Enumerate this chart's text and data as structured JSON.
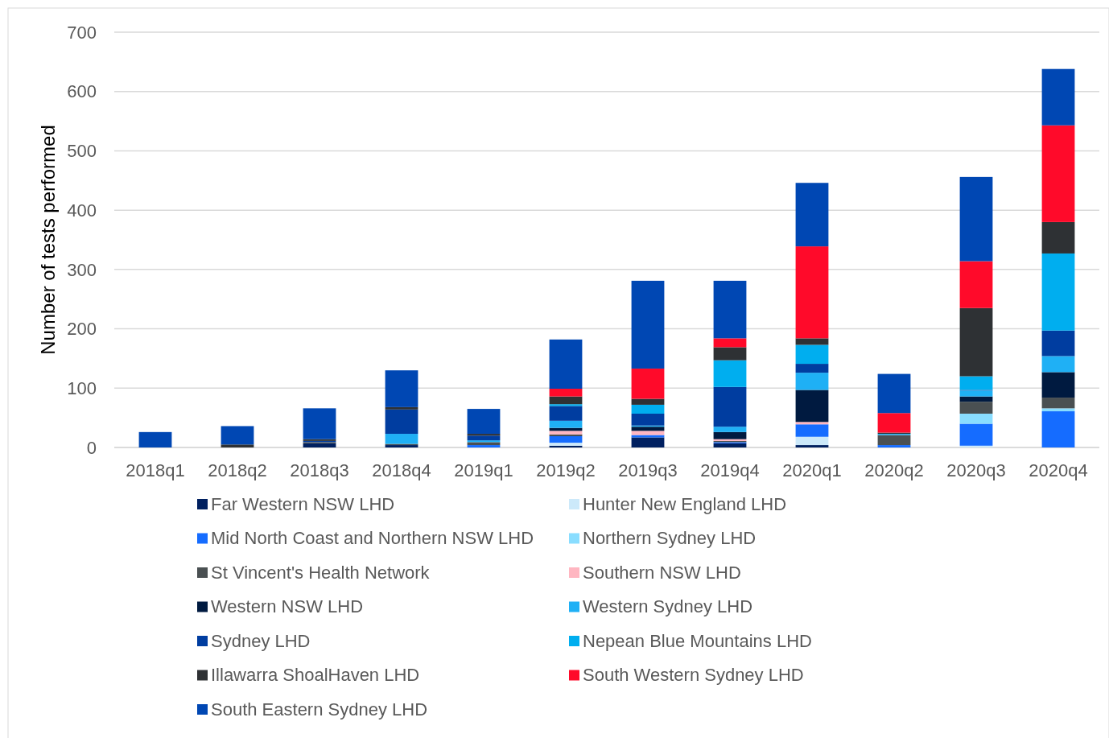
{
  "chart_data": {
    "type": "bar",
    "stacked": true,
    "ylabel": "Number of tests performed",
    "categories": [
      "2018q1",
      "2018q2",
      "2018q3",
      "2018q4",
      "2019q1",
      "2019q2",
      "2019q3",
      "2019q4",
      "2020q1",
      "2020q2",
      "2020q3",
      "2020q4"
    ],
    "ylim": [
      0,
      700
    ],
    "yticks": [
      0,
      100,
      200,
      300,
      400,
      500,
      600,
      700
    ],
    "grid": "y",
    "legend": "bottom",
    "series": [
      {
        "name": "Far Western NSW LHD",
        "color": "#002060",
        "values": [
          0,
          0,
          7,
          4,
          0,
          3,
          17,
          7,
          4,
          0,
          0,
          0
        ]
      },
      {
        "name": "Hunter New England LHD",
        "color": "#cce9fa",
        "values": [
          0,
          0,
          0,
          0,
          0,
          5,
          0,
          0,
          14,
          0,
          3,
          0
        ]
      },
      {
        "name": "Mid North Coast and Northern NSW LHD",
        "color": "#156cff",
        "values": [
          0,
          0,
          0,
          0,
          4,
          11,
          4,
          2,
          21,
          4,
          37,
          61
        ]
      },
      {
        "name": "Northern Sydney LHD",
        "color": "#89ddff",
        "values": [
          0,
          0,
          0,
          0,
          0,
          0,
          0,
          0,
          0,
          0,
          17,
          5
        ]
      },
      {
        "name": "St Vincent's Health Network",
        "color": "#4a5052",
        "values": [
          0,
          0,
          2,
          2,
          5,
          3,
          0,
          2,
          0,
          17,
          20,
          18
        ]
      },
      {
        "name": "Southern NSW LHD",
        "color": "#ffb6c1",
        "values": [
          0,
          0,
          0,
          0,
          0,
          6,
          7,
          3,
          4,
          0,
          0,
          null
        ]
      },
      {
        "name": "Western NSW LHD",
        "color": "#001a40",
        "values": [
          0,
          0,
          0,
          0,
          0,
          5,
          7,
          12,
          54,
          0,
          9,
          43
        ]
      },
      {
        "name": "Western Sydney LHD",
        "color": "#1fb0f5",
        "values": [
          0,
          0,
          0,
          17,
          3,
          12,
          2,
          9,
          29,
          2,
          10,
          27
        ]
      },
      {
        "name": "Sydney LHD",
        "color": "#003da0",
        "values": [
          0,
          0,
          2,
          41,
          8,
          25,
          20,
          67,
          15,
          0,
          1,
          43
        ]
      },
      {
        "name": "Nepean Blue Mountains LHD",
        "color": "#00aeef",
        "values": [
          0,
          0,
          0,
          0,
          0,
          3,
          15,
          45,
          32,
          0,
          23,
          130
        ]
      },
      {
        "name": "Illawarra ShoalHaven LHD",
        "color": "#2e3134",
        "values": [
          0,
          5,
          3,
          4,
          3,
          13,
          10,
          22,
          11,
          2,
          115,
          53
        ]
      },
      {
        "name": "South Western Sydney LHD",
        "color": "#ff0a2a",
        "values": [
          0,
          0,
          0,
          0,
          0,
          13,
          51,
          15,
          155,
          33,
          79,
          163
        ]
      },
      {
        "name": "South Eastern Sydney LHD",
        "color": "#0047b3",
        "values": [
          26,
          31,
          52,
          62,
          42,
          83,
          148,
          97,
          107,
          66,
          142,
          95
        ]
      }
    ]
  }
}
